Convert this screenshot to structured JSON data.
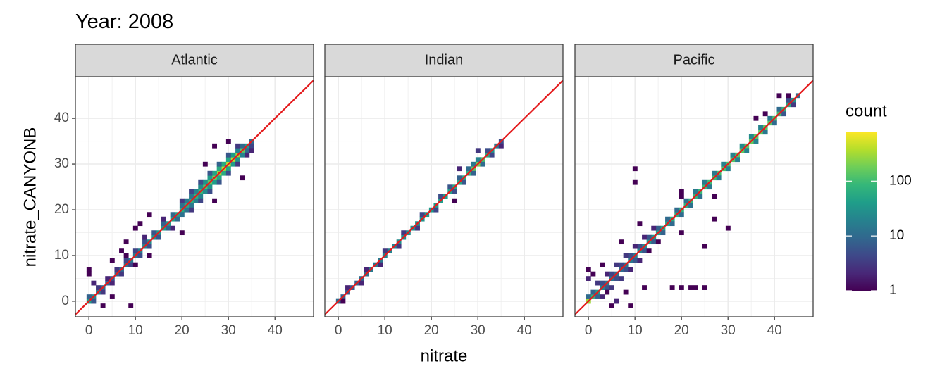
{
  "chart_data": {
    "type": "bin2d",
    "title": "Year: 2008",
    "x_label": "nitrate",
    "y_label": "nitrate_CANYONB",
    "xlim": [
      -2.9,
      48.3
    ],
    "ylim": [
      -3.4,
      49.1
    ],
    "xticks": [
      0,
      10,
      20,
      30,
      40
    ],
    "yticks": [
      0,
      10,
      20,
      30,
      40
    ],
    "grid": true,
    "binwidth": 1,
    "reference_line_color": "#e41a1c",
    "legend_title": "count",
    "color_scale": "viridis",
    "log_color": true,
    "clim": [
      1,
      800
    ],
    "cticks": [
      1,
      10,
      100
    ],
    "panels": [
      {
        "name": "Atlantic",
        "x": [
          0,
          1,
          2,
          3,
          4,
          5,
          6,
          7,
          8,
          9,
          10,
          11,
          12,
          13,
          14,
          15,
          16,
          17,
          18,
          19,
          20,
          21,
          22,
          23,
          24,
          25,
          26,
          27,
          28,
          29,
          30,
          31,
          32,
          33,
          34,
          35,
          0,
          2,
          4,
          6,
          8,
          10,
          12,
          14,
          16,
          18,
          20,
          21,
          22,
          23,
          24,
          25,
          26,
          27,
          28,
          29,
          30,
          31,
          32,
          33,
          1,
          3,
          5,
          7,
          9,
          11,
          13,
          15,
          17,
          19,
          20,
          21,
          22,
          23,
          24,
          25,
          26,
          27,
          28,
          29,
          30,
          31,
          32,
          33,
          34,
          35,
          8,
          12,
          16,
          20,
          22,
          24,
          26,
          28,
          30,
          32,
          10,
          18,
          22,
          24,
          26,
          28,
          30,
          32,
          34,
          0,
          0,
          1,
          3,
          9,
          5,
          7,
          8,
          10,
          11,
          13,
          25,
          27,
          30,
          35,
          33,
          27,
          20,
          13,
          5
        ],
        "y": [
          0,
          1,
          2,
          3,
          4,
          5,
          6,
          7,
          8,
          9,
          10,
          11,
          12,
          13,
          14,
          15,
          16,
          17,
          18,
          19,
          20,
          21,
          22,
          23,
          24,
          25,
          26,
          27,
          28,
          29,
          30,
          31,
          32,
          33,
          34,
          35,
          1,
          3,
          5,
          7,
          9,
          11,
          13,
          15,
          17,
          19,
          21,
          22,
          23,
          24,
          25,
          26,
          27,
          28,
          29,
          30,
          31,
          32,
          33,
          34,
          0,
          2,
          4,
          6,
          8,
          10,
          12,
          14,
          16,
          18,
          19,
          20,
          21,
          22,
          23,
          24,
          25,
          26,
          27,
          28,
          29,
          30,
          31,
          32,
          33,
          34,
          10,
          14,
          18,
          22,
          24,
          26,
          28,
          30,
          32,
          34,
          8,
          16,
          20,
          22,
          24,
          26,
          28,
          30,
          32,
          7,
          6,
          4,
          -1,
          -1,
          9,
          11,
          13,
          16,
          17,
          19,
          30,
          34,
          35,
          33,
          27,
          22,
          15,
          10,
          1
        ],
        "count": [
          40,
          25,
          15,
          12,
          8,
          6,
          8,
          10,
          12,
          15,
          15,
          18,
          20,
          25,
          30,
          35,
          40,
          40,
          45,
          50,
          60,
          60,
          70,
          80,
          90,
          120,
          150,
          200,
          300,
          400,
          500,
          400,
          300,
          150,
          40,
          10,
          8,
          3,
          2,
          3,
          4,
          4,
          5,
          6,
          8,
          10,
          12,
          15,
          15,
          20,
          25,
          30,
          40,
          50,
          60,
          60,
          50,
          40,
          20,
          10,
          6,
          3,
          2,
          3,
          4,
          5,
          5,
          6,
          8,
          10,
          12,
          12,
          15,
          18,
          20,
          25,
          30,
          40,
          50,
          60,
          50,
          40,
          30,
          20,
          10,
          4,
          1,
          2,
          2,
          3,
          4,
          5,
          6,
          8,
          6,
          3,
          1,
          2,
          3,
          4,
          5,
          6,
          5,
          3,
          2,
          1,
          1,
          2,
          1,
          1,
          1,
          1,
          1,
          1,
          1,
          1,
          1,
          1,
          1,
          2,
          1,
          1,
          1,
          1,
          1
        ]
      },
      {
        "name": "Indian",
        "x": [
          0,
          1,
          2,
          3,
          4,
          5,
          6,
          7,
          8,
          9,
          10,
          11,
          12,
          13,
          14,
          15,
          16,
          17,
          18,
          19,
          20,
          21,
          22,
          23,
          24,
          25,
          26,
          27,
          28,
          29,
          30,
          31,
          32,
          33,
          34,
          35,
          2,
          6,
          10,
          14,
          18,
          22,
          24,
          26,
          28,
          29,
          30,
          32,
          1,
          5,
          9,
          13,
          17,
          21,
          25,
          27,
          29,
          31,
          33,
          35,
          26,
          25,
          30
        ],
        "y": [
          0,
          1,
          2,
          3,
          4,
          5,
          6,
          7,
          8,
          9,
          10,
          11,
          12,
          13,
          14,
          15,
          16,
          17,
          18,
          19,
          20,
          21,
          22,
          23,
          24,
          25,
          26,
          27,
          28,
          29,
          30,
          31,
          32,
          33,
          34,
          35,
          3,
          7,
          11,
          15,
          19,
          23,
          25,
          27,
          29,
          30,
          31,
          33,
          0,
          4,
          8,
          12,
          16,
          20,
          24,
          26,
          28,
          30,
          32,
          34,
          29,
          22,
          33
        ],
        "count": [
          10,
          8,
          6,
          6,
          8,
          10,
          12,
          15,
          15,
          15,
          20,
          20,
          20,
          25,
          25,
          25,
          30,
          30,
          30,
          35,
          35,
          40,
          40,
          40,
          45,
          50,
          50,
          60,
          80,
          150,
          200,
          120,
          60,
          30,
          15,
          5,
          2,
          2,
          3,
          3,
          4,
          5,
          6,
          8,
          10,
          15,
          20,
          5,
          1,
          2,
          2,
          3,
          3,
          4,
          5,
          6,
          8,
          10,
          4,
          2,
          2,
          1,
          3
        ]
      },
      {
        "name": "Pacific",
        "x": [
          0,
          1,
          2,
          3,
          4,
          5,
          6,
          7,
          8,
          9,
          10,
          11,
          12,
          13,
          14,
          15,
          16,
          17,
          18,
          19,
          20,
          21,
          22,
          23,
          24,
          25,
          26,
          27,
          28,
          29,
          30,
          31,
          32,
          33,
          34,
          35,
          36,
          37,
          38,
          39,
          40,
          41,
          42,
          43,
          44,
          45,
          0,
          1,
          3,
          5,
          7,
          9,
          11,
          13,
          15,
          17,
          19,
          21,
          23,
          25,
          27,
          29,
          31,
          33,
          35,
          37,
          39,
          41,
          43,
          2,
          4,
          6,
          8,
          10,
          12,
          14,
          16,
          18,
          20,
          22,
          24,
          26,
          28,
          30,
          32,
          34,
          36,
          38,
          40,
          42,
          44,
          2,
          4,
          6,
          8,
          10,
          12,
          14,
          3,
          5,
          7,
          9,
          11,
          13,
          15,
          10,
          10,
          20,
          20,
          27,
          27,
          20,
          25,
          30,
          41,
          43,
          36,
          38,
          0,
          1,
          0,
          4,
          6,
          8,
          12,
          18,
          20,
          22,
          23,
          25,
          3,
          7,
          11,
          9,
          5
        ],
        "y": [
          0,
          1,
          2,
          3,
          4,
          5,
          6,
          7,
          8,
          9,
          10,
          11,
          12,
          13,
          14,
          15,
          16,
          17,
          18,
          19,
          20,
          21,
          22,
          23,
          24,
          25,
          26,
          27,
          28,
          29,
          30,
          31,
          32,
          33,
          34,
          35,
          36,
          37,
          38,
          39,
          40,
          41,
          42,
          43,
          44,
          45,
          1,
          2,
          4,
          6,
          8,
          10,
          12,
          14,
          16,
          18,
          20,
          22,
          24,
          26,
          28,
          30,
          32,
          34,
          36,
          38,
          40,
          42,
          44,
          1,
          3,
          5,
          7,
          9,
          11,
          13,
          15,
          17,
          19,
          21,
          23,
          25,
          27,
          29,
          31,
          33,
          35,
          37,
          39,
          41,
          43,
          4,
          6,
          8,
          10,
          12,
          14,
          16,
          1,
          3,
          5,
          7,
          9,
          11,
          13,
          29,
          26,
          24,
          23,
          23,
          18,
          15,
          12,
          16,
          45,
          45,
          40,
          41,
          7,
          6,
          5,
          2,
          0,
          2,
          3,
          3,
          3,
          3,
          3,
          3,
          8,
          13,
          17,
          -1,
          -1
        ],
        "count": [
          300,
          80,
          40,
          20,
          15,
          12,
          10,
          10,
          12,
          15,
          15,
          20,
          25,
          30,
          35,
          40,
          50,
          50,
          60,
          60,
          70,
          70,
          80,
          80,
          90,
          90,
          100,
          100,
          110,
          120,
          120,
          130,
          140,
          150,
          150,
          160,
          150,
          150,
          140,
          130,
          120,
          100,
          80,
          60,
          30,
          10,
          10,
          8,
          5,
          4,
          4,
          5,
          5,
          6,
          8,
          10,
          10,
          12,
          15,
          15,
          15,
          20,
          20,
          25,
          25,
          20,
          15,
          10,
          5,
          8,
          6,
          5,
          5,
          6,
          6,
          7,
          8,
          10,
          10,
          12,
          12,
          15,
          15,
          18,
          18,
          20,
          20,
          15,
          10,
          6,
          3,
          3,
          2,
          3,
          3,
          2,
          2,
          2,
          2,
          3,
          3,
          2,
          2,
          1,
          1,
          1,
          1,
          1,
          1,
          1,
          1,
          1,
          1,
          1,
          1,
          1,
          1,
          1,
          1,
          1,
          2,
          1,
          2,
          1,
          1,
          1,
          1,
          1,
          1,
          1,
          1,
          1,
          1,
          1,
          1
        ]
      }
    ]
  }
}
